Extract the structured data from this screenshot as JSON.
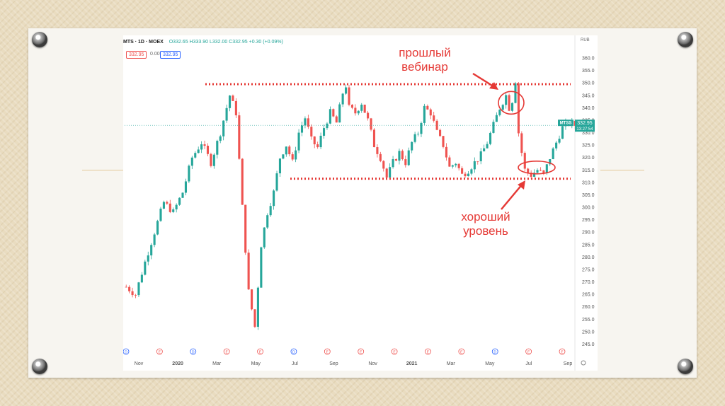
{
  "header": {
    "symbol": "MTS · 1D · MOEX",
    "ohlc": "O332.65  H333.90  L332.00  C332.95  +0.30 (+0.09%)",
    "price_left": "332.95",
    "spread": "0.00",
    "price_right": "332.95"
  },
  "annotations": {
    "top_note": [
      "прошлый",
      "вебинар"
    ],
    "bottom_note": [
      "хороший",
      "уровень"
    ]
  },
  "colors": {
    "up": "#26a69a",
    "down": "#ef5350",
    "annotation": "#e53935",
    "current_price": "#26a69a"
  },
  "chart_data": {
    "type": "candlestick",
    "ylim": [
      244,
      362
    ],
    "y_ticks": [
      245,
      250,
      255,
      260,
      265,
      270,
      275,
      280,
      285,
      290,
      295,
      300,
      305,
      310,
      315,
      320,
      325,
      330,
      335,
      340,
      345,
      350,
      355,
      360
    ],
    "x_ticks": [
      "Nov",
      "2020",
      "Mar",
      "May",
      "Jul",
      "Sep",
      "Nov",
      "2021",
      "Mar",
      "May",
      "Jul",
      "Sep"
    ],
    "currency_label": "RUB",
    "current_price": {
      "value": 332.95,
      "label": "MTSS",
      "price": "332.95",
      "time": "13:27:54"
    },
    "resistance_level": 349.5,
    "support_level": 311.5,
    "event_markers": [
      "D",
      "E",
      "D",
      "E",
      "E",
      "D",
      "E",
      "E",
      "E",
      "E",
      "E",
      "D",
      "E",
      "E"
    ],
    "price_path": [
      [
        0,
        268
      ],
      [
        3,
        265
      ],
      [
        6,
        278
      ],
      [
        9,
        290
      ],
      [
        12,
        302
      ],
      [
        15,
        298
      ],
      [
        18,
        306
      ],
      [
        21,
        320
      ],
      [
        24,
        326
      ],
      [
        27,
        318
      ],
      [
        30,
        330
      ],
      [
        33,
        345
      ],
      [
        35,
        338
      ],
      [
        37,
        300
      ],
      [
        39,
        266
      ],
      [
        41,
        252
      ],
      [
        43,
        285
      ],
      [
        45,
        298
      ],
      [
        47,
        306
      ],
      [
        49,
        320
      ],
      [
        51,
        325
      ],
      [
        53,
        318
      ],
      [
        55,
        330
      ],
      [
        57,
        336
      ],
      [
        59,
        327
      ],
      [
        61,
        324
      ],
      [
        63,
        332
      ],
      [
        65,
        338
      ],
      [
        67,
        334
      ],
      [
        69,
        346
      ],
      [
        70,
        349
      ],
      [
        71,
        340
      ],
      [
        73,
        338
      ],
      [
        75,
        342
      ],
      [
        77,
        335
      ],
      [
        79,
        325
      ],
      [
        81,
        320
      ],
      [
        83,
        312
      ],
      [
        85,
        318
      ],
      [
        87,
        322
      ],
      [
        89,
        318
      ],
      [
        91,
        326
      ],
      [
        93,
        330
      ],
      [
        95,
        340
      ],
      [
        97,
        338
      ],
      [
        99,
        330
      ],
      [
        101,
        325
      ],
      [
        103,
        316
      ],
      [
        105,
        318
      ],
      [
        107,
        313
      ],
      [
        109,
        315
      ],
      [
        111,
        318
      ],
      [
        113,
        321
      ],
      [
        115,
        326
      ],
      [
        117,
        333
      ],
      [
        119,
        340
      ],
      [
        121,
        345
      ],
      [
        122,
        340
      ],
      [
        123,
        343
      ],
      [
        124,
        351
      ],
      [
        125,
        330
      ],
      [
        126,
        322
      ],
      [
        127,
        315
      ],
      [
        129,
        313
      ],
      [
        131,
        315
      ],
      [
        133,
        313
      ],
      [
        135,
        320
      ],
      [
        137,
        326
      ],
      [
        139,
        332
      ],
      [
        141,
        334
      ],
      [
        143,
        333
      ]
    ]
  }
}
